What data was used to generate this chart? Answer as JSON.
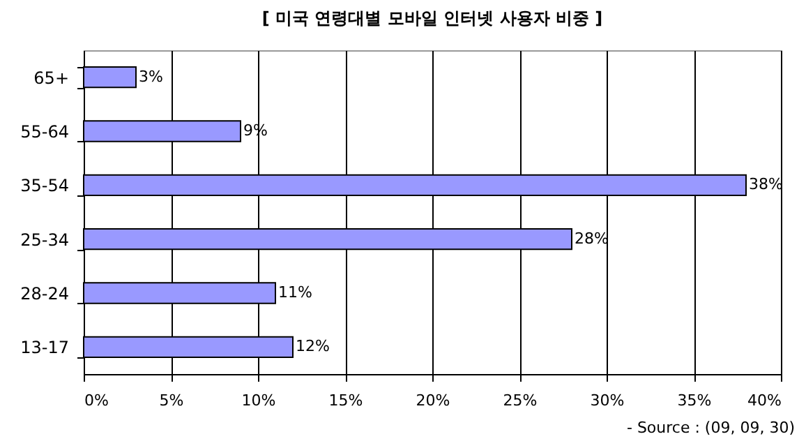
{
  "chart_data": {
    "type": "bar",
    "orientation": "horizontal",
    "title": "[ 미국 연령대별 모바일 인터넷 사용자 비중 ]",
    "categories": [
      "65+",
      "55-64",
      "35-54",
      "25-34",
      "28-24",
      "13-17"
    ],
    "values": [
      3,
      9,
      38,
      28,
      11,
      12
    ],
    "value_labels": [
      "3%",
      "9%",
      "38%",
      "28%",
      "11%",
      "12%"
    ],
    "color": "#9999ff",
    "xlim": [
      0,
      40
    ],
    "xticks": [
      {
        "value": 0,
        "label": "0%"
      },
      {
        "value": 5,
        "label": "5%"
      },
      {
        "value": 10,
        "label": "10%"
      },
      {
        "value": 15,
        "label": "15%"
      },
      {
        "value": 20,
        "label": "20%"
      },
      {
        "value": 25,
        "label": "25%"
      },
      {
        "value": 30,
        "label": "30%"
      },
      {
        "value": 35,
        "label": "35%"
      },
      {
        "value": 40,
        "label": "40%"
      }
    ],
    "grid": "x",
    "annotations": [
      "- Source : (09, 09, 30)"
    ]
  }
}
